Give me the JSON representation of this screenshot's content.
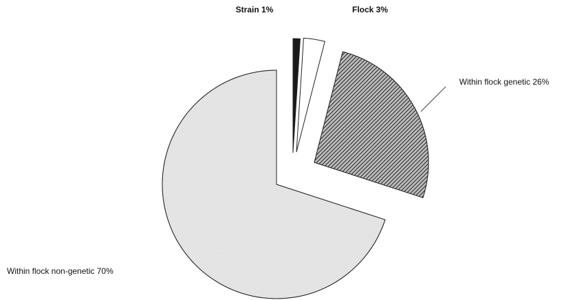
{
  "chart_data": {
    "type": "pie",
    "values": [
      1,
      3,
      26,
      70
    ],
    "value_labels": [
      "Strain 1%",
      "Flock 3%",
      "Within flock genetic 26%",
      "Within flock non-genetic 70%"
    ],
    "colors": [
      "#1a1a1a",
      "#ffffff",
      "#6a6a6a",
      "#e4e4e4"
    ]
  }
}
